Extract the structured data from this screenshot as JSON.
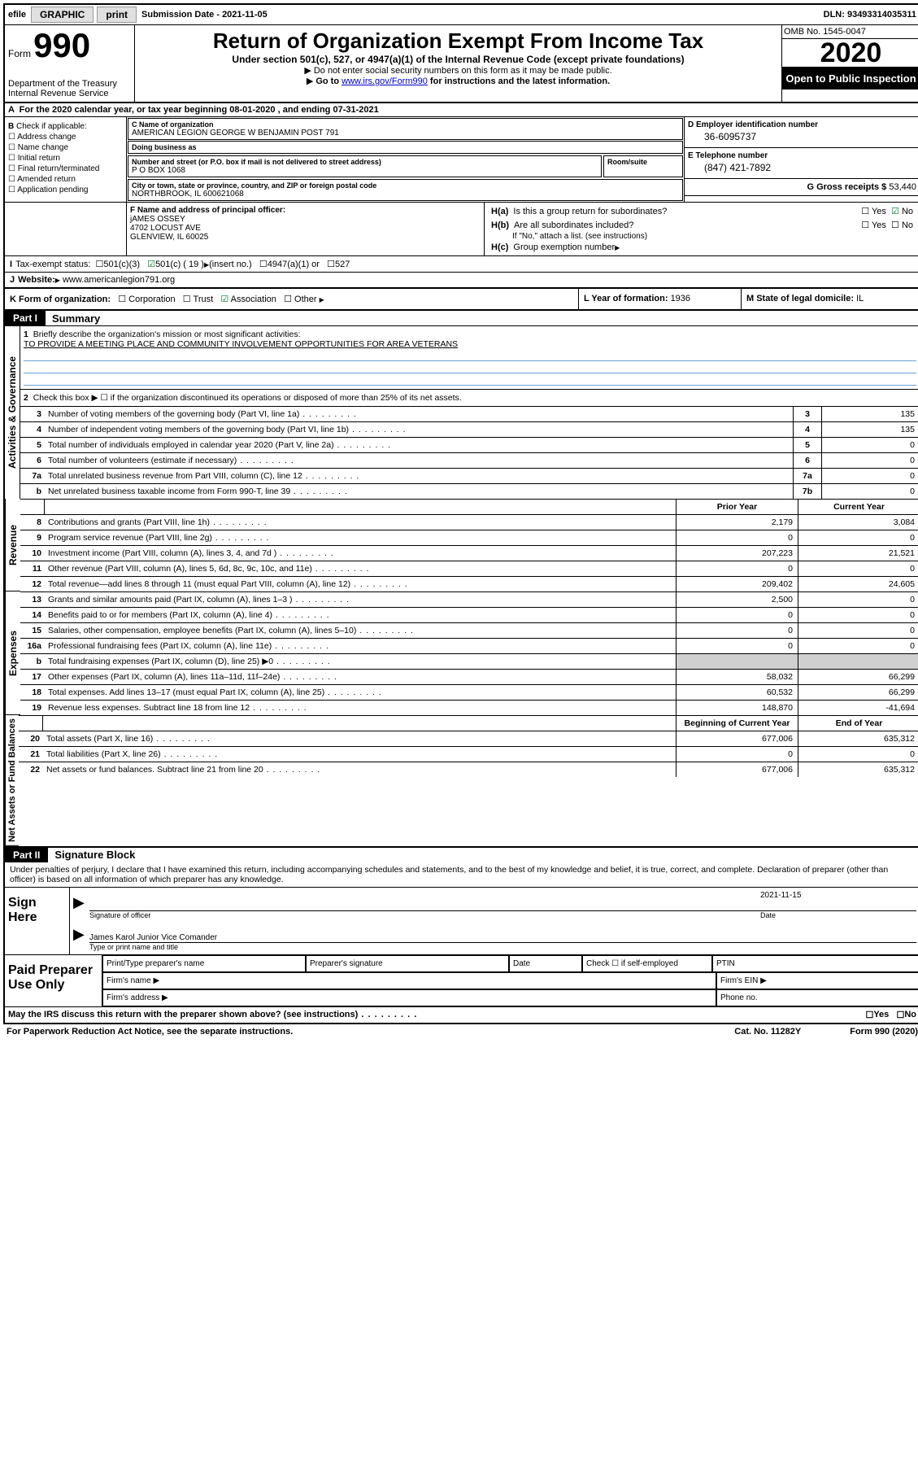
{
  "topbar": {
    "efile": "efile",
    "graphic": "GRAPHIC",
    "print": "print",
    "sub_label": "Submission Date - ",
    "sub_date": "2021-11-05",
    "dln_label": "DLN: ",
    "dln": "93493314035311"
  },
  "header": {
    "form_prefix": "Form",
    "form_num": "990",
    "dept1": "Department of the Treasury",
    "dept2": "Internal Revenue Service",
    "title": "Return of Organization Exempt From Income Tax",
    "sub1": "Under section 501(c), 527, or 4947(a)(1) of the Internal Revenue Code (except private foundations)",
    "sub2": "Do not enter social security numbers on this form as it may be made public.",
    "sub3_a": "Go to ",
    "sub3_link": "www.irs.gov/Form990",
    "sub3_b": " for instructions and the latest information.",
    "omb": "OMB No. 1545-0047",
    "year": "2020",
    "open": "Open to Public Inspection"
  },
  "line_a": {
    "text_a": "For the 2020 calendar year, or tax year beginning ",
    "begin": "08-01-2020",
    "text_b": ", and ending ",
    "end": "07-31-2021"
  },
  "box_b": {
    "title": "Check if applicable:",
    "opts": [
      "Address change",
      "Name change",
      "Initial return",
      "Final return/terminated",
      "Amended return",
      "Application pending"
    ]
  },
  "box_c": {
    "name_lbl": "C Name of organization",
    "name": "AMERICAN LEGION GEORGE W BENJAMIN POST 791",
    "dba_lbl": "Doing business as",
    "dba": "",
    "addr_lbl": "Number and street (or P.O. box if mail is not delivered to street address)",
    "addr": "P O BOX 1068",
    "room_lbl": "Room/suite",
    "city_lbl": "City or town, state or province, country, and ZIP or foreign postal code",
    "city": "NORTHBROOK, IL  600621068"
  },
  "box_d": {
    "lbl": "D Employer identification number",
    "val": "36-6095737"
  },
  "box_e": {
    "lbl": "E Telephone number",
    "val": "(847) 421-7892"
  },
  "box_g": {
    "lbl": "G Gross receipts $ ",
    "val": "53,440"
  },
  "box_f": {
    "lbl": "F Name and address of principal officer:",
    "name": "jAMES OSSEY",
    "addr1": "4702 LOCUST AVE",
    "addr2": "GLENVIEW, IL  60025"
  },
  "box_h": {
    "a_lbl": "H(a)",
    "a_txt": "Is this a group return for subordinates?",
    "a_yes": "Yes",
    "a_no": "No",
    "b_lbl": "H(b)",
    "b_txt": "Are all subordinates included?",
    "b_note": "If \"No,\" attach a list. (see instructions)",
    "c_lbl": "H(c)",
    "c_txt": "Group exemption number "
  },
  "line_i": {
    "lbl": "I",
    "txt": "Tax-exempt status:",
    "o1": "501(c)(3)",
    "o2": "501(c) ( 19 ) ",
    "o2b": "(insert no.)",
    "o3": "4947(a)(1) or",
    "o4": "527"
  },
  "line_j": {
    "lbl": "J",
    "txt": "Website: ",
    "val": "www.americanlegion791.org"
  },
  "line_k": {
    "lbl": "K Form of organization:",
    "o1": "Corporation",
    "o2": "Trust",
    "o3": "Association",
    "o4": "Other",
    "l_lbl": "L Year of formation: ",
    "l_val": "1936",
    "m_lbl": "M State of legal domicile: ",
    "m_val": "IL"
  },
  "part1": {
    "header": "Part I",
    "title": "Summary"
  },
  "side_labels": {
    "gov": "Activities & Governance",
    "rev": "Revenue",
    "exp": "Expenses",
    "net": "Net Assets or Fund Balances"
  },
  "s1": {
    "num": "1",
    "txt": "Briefly describe the organization's mission or most significant activities:",
    "mission": "TO PROVIDE A MEETING PLACE AND COMMUNITY INVOLVEMENT OPPORTUNITIES FOR AREA VETERANS"
  },
  "s2": {
    "num": "2",
    "txt": "Check this box ▶ ☐  if the organization discontinued its operations or disposed of more than 25% of its net assets."
  },
  "rows_gov": [
    {
      "n": "3",
      "t": "Number of voting members of the governing body (Part VI, line 1a)",
      "b": "3",
      "v": "135"
    },
    {
      "n": "4",
      "t": "Number of independent voting members of the governing body (Part VI, line 1b)",
      "b": "4",
      "v": "135"
    },
    {
      "n": "5",
      "t": "Total number of individuals employed in calendar year 2020 (Part V, line 2a)",
      "b": "5",
      "v": "0"
    },
    {
      "n": "6",
      "t": "Total number of volunteers (estimate if necessary)",
      "b": "6",
      "v": "0"
    },
    {
      "n": "7a",
      "t": "Total unrelated business revenue from Part VIII, column (C), line 12",
      "b": "7a",
      "v": "0"
    },
    {
      "n": "b",
      "t": "Net unrelated business taxable income from Form 990-T, line 39",
      "b": "7b",
      "v": "0"
    }
  ],
  "col_headers": {
    "prior": "Prior Year",
    "current": "Current Year",
    "boc": "Beginning of Current Year",
    "eoy": "End of Year"
  },
  "rows_rev": [
    {
      "n": "8",
      "t": "Contributions and grants (Part VIII, line 1h)",
      "p": "2,179",
      "c": "3,084"
    },
    {
      "n": "9",
      "t": "Program service revenue (Part VIII, line 2g)",
      "p": "0",
      "c": "0"
    },
    {
      "n": "10",
      "t": "Investment income (Part VIII, column (A), lines 3, 4, and 7d )",
      "p": "207,223",
      "c": "21,521"
    },
    {
      "n": "11",
      "t": "Other revenue (Part VIII, column (A), lines 5, 6d, 8c, 9c, 10c, and 11e)",
      "p": "0",
      "c": "0"
    },
    {
      "n": "12",
      "t": "Total revenue—add lines 8 through 11 (must equal Part VIII, column (A), line 12)",
      "p": "209,402",
      "c": "24,605"
    }
  ],
  "rows_exp": [
    {
      "n": "13",
      "t": "Grants and similar amounts paid (Part IX, column (A), lines 1–3 )",
      "p": "2,500",
      "c": "0"
    },
    {
      "n": "14",
      "t": "Benefits paid to or for members (Part IX, column (A), line 4)",
      "p": "0",
      "c": "0"
    },
    {
      "n": "15",
      "t": "Salaries, other compensation, employee benefits (Part IX, column (A), lines 5–10)",
      "p": "0",
      "c": "0"
    },
    {
      "n": "16a",
      "t": "Professional fundraising fees (Part IX, column (A), line 11e)",
      "p": "0",
      "c": "0"
    },
    {
      "n": "b",
      "t": "Total fundraising expenses (Part IX, column (D), line 25) ▶0",
      "p": "",
      "c": "",
      "shaded": true
    },
    {
      "n": "17",
      "t": "Other expenses (Part IX, column (A), lines 11a–11d, 11f–24e)",
      "p": "58,032",
      "c": "66,299"
    },
    {
      "n": "18",
      "t": "Total expenses. Add lines 13–17 (must equal Part IX, column (A), line 25)",
      "p": "60,532",
      "c": "66,299"
    },
    {
      "n": "19",
      "t": "Revenue less expenses. Subtract line 18 from line 12",
      "p": "148,870",
      "c": "-41,694"
    }
  ],
  "rows_net": [
    {
      "n": "20",
      "t": "Total assets (Part X, line 16)",
      "p": "677,006",
      "c": "635,312"
    },
    {
      "n": "21",
      "t": "Total liabilities (Part X, line 26)",
      "p": "0",
      "c": "0"
    },
    {
      "n": "22",
      "t": "Net assets or fund balances. Subtract line 21 from line 20",
      "p": "677,006",
      "c": "635,312"
    }
  ],
  "part2": {
    "header": "Part II",
    "title": "Signature Block",
    "decl": "Under penalties of perjury, I declare that I have examined this return, including accompanying schedules and statements, and to the best of my knowledge and belief, it is true, correct, and complete. Declaration of preparer (other than officer) is based on all information of which preparer has any knowledge."
  },
  "sign": {
    "left": "Sign Here",
    "sig_lbl": "Signature of officer",
    "date_lbl": "Date",
    "date": "2021-11-15",
    "name": "James Karol Junior Vice Comander",
    "name_lbl": "Type or print name and title"
  },
  "paid": {
    "left": "Paid Preparer Use Only",
    "c1": "Print/Type preparer's name",
    "c2": "Preparer's signature",
    "c3": "Date",
    "c4a": "Check ☐ if self-employed",
    "c4b": "PTIN",
    "r2a": "Firm's name  ▶",
    "r2b": "Firm's EIN ▶",
    "r3a": "Firm's address ▶",
    "r3b": "Phone no."
  },
  "footer": {
    "q": "May the IRS discuss this return with the preparer shown above? (see instructions)",
    "yes": "Yes",
    "no": "No",
    "pra": "For Paperwork Reduction Act Notice, see the separate instructions.",
    "cat": "Cat. No. 11282Y",
    "form": "Form 990 (2020)"
  }
}
